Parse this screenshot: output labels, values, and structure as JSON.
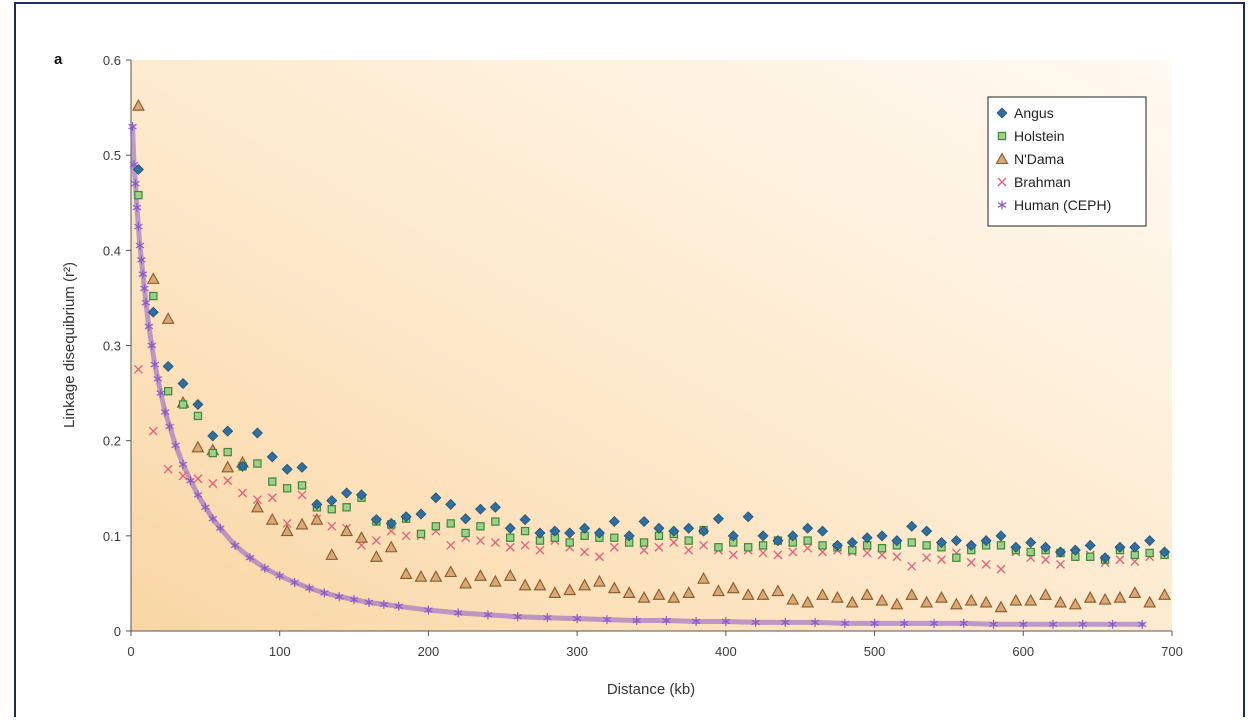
{
  "chart_data": {
    "type": "scatter",
    "panel_label": "a",
    "xlabel": "Distance (kb)",
    "ylabel": "Linkage disequibrium (r²)",
    "xlim": [
      0,
      700
    ],
    "ylim": [
      0,
      0.6
    ],
    "xticks": [
      0,
      100,
      200,
      300,
      400,
      500,
      600,
      700
    ],
    "yticks": [
      0,
      0.1,
      0.2,
      0.3,
      0.4,
      0.5,
      0.6
    ],
    "ytick_labels": [
      "0",
      "0.1",
      "0.2",
      "0.3",
      "0.4",
      "0.5",
      "0.6"
    ],
    "legend_position": "top-right",
    "background": "light orange gradient",
    "series": [
      {
        "name": "Angus",
        "marker": "diamond",
        "color": "#2f6fa0",
        "x": [
          5,
          15,
          25,
          35,
          45,
          55,
          65,
          75,
          85,
          95,
          105,
          115,
          125,
          135,
          145,
          155,
          165,
          175,
          185,
          195,
          205,
          215,
          225,
          235,
          245,
          255,
          265,
          275,
          285,
          295,
          305,
          315,
          325,
          335,
          345,
          355,
          365,
          375,
          385,
          395,
          405,
          415,
          425,
          435,
          445,
          455,
          465,
          475,
          485,
          495,
          505,
          515,
          525,
          535,
          545,
          555,
          565,
          575,
          585,
          595,
          605,
          615,
          625,
          635,
          645,
          655,
          665,
          675,
          685,
          695
        ],
        "y": [
          0.485,
          0.335,
          0.278,
          0.26,
          0.238,
          0.205,
          0.21,
          0.173,
          0.208,
          0.183,
          0.17,
          0.172,
          0.133,
          0.137,
          0.145,
          0.143,
          0.117,
          0.113,
          0.12,
          0.123,
          0.14,
          0.133,
          0.118,
          0.128,
          0.13,
          0.108,
          0.117,
          0.103,
          0.105,
          0.103,
          0.108,
          0.103,
          0.115,
          0.1,
          0.115,
          0.108,
          0.105,
          0.108,
          0.105,
          0.118,
          0.1,
          0.12,
          0.1,
          0.095,
          0.1,
          0.108,
          0.105,
          0.09,
          0.093,
          0.098,
          0.1,
          0.095,
          0.11,
          0.105,
          0.093,
          0.095,
          0.09,
          0.095,
          0.1,
          0.088,
          0.093,
          0.088,
          0.083,
          0.085,
          0.09,
          0.077,
          0.088,
          0.088,
          0.095,
          0.083
        ]
      },
      {
        "name": "Holstein",
        "marker": "square",
        "color": "#3c8a3c",
        "x": [
          5,
          15,
          25,
          35,
          45,
          55,
          65,
          75,
          85,
          95,
          105,
          115,
          125,
          135,
          145,
          155,
          165,
          175,
          185,
          195,
          205,
          215,
          225,
          235,
          245,
          255,
          265,
          275,
          285,
          295,
          305,
          315,
          325,
          335,
          345,
          355,
          365,
          375,
          385,
          395,
          405,
          415,
          425,
          435,
          445,
          455,
          465,
          475,
          485,
          495,
          505,
          515,
          525,
          535,
          545,
          555,
          565,
          575,
          585,
          595,
          605,
          615,
          625,
          635,
          645,
          655,
          665,
          675,
          685,
          695
        ],
        "y": [
          0.458,
          0.352,
          0.252,
          0.238,
          0.226,
          0.187,
          0.188,
          0.173,
          0.176,
          0.157,
          0.15,
          0.153,
          0.13,
          0.128,
          0.13,
          0.14,
          0.115,
          0.112,
          0.118,
          0.102,
          0.11,
          0.113,
          0.103,
          0.11,
          0.115,
          0.098,
          0.105,
          0.095,
          0.098,
          0.093,
          0.1,
          0.098,
          0.098,
          0.093,
          0.093,
          0.1,
          0.102,
          0.095,
          0.106,
          0.088,
          0.093,
          0.088,
          0.09,
          0.095,
          0.093,
          0.095,
          0.09,
          0.088,
          0.085,
          0.09,
          0.087,
          0.09,
          0.093,
          0.09,
          0.088,
          0.077,
          0.085,
          0.09,
          0.09,
          0.085,
          0.083,
          0.085,
          0.082,
          0.078,
          0.078,
          0.075,
          0.085,
          0.08,
          0.082,
          0.08
        ]
      },
      {
        "name": "N'Dama",
        "marker": "triangle",
        "color": "#8a5a2a",
        "x": [
          5,
          15,
          25,
          35,
          45,
          55,
          65,
          75,
          85,
          95,
          105,
          115,
          125,
          135,
          145,
          155,
          165,
          175,
          185,
          195,
          205,
          215,
          225,
          235,
          245,
          255,
          265,
          275,
          285,
          295,
          305,
          315,
          325,
          335,
          345,
          355,
          365,
          375,
          385,
          395,
          405,
          415,
          425,
          435,
          445,
          455,
          465,
          475,
          485,
          495,
          505,
          515,
          525,
          535,
          545,
          555,
          565,
          575,
          585,
          595,
          605,
          615,
          625,
          635,
          645,
          655,
          665,
          675,
          685,
          695
        ],
        "y": [
          0.552,
          0.37,
          0.328,
          0.24,
          0.193,
          0.19,
          0.172,
          0.177,
          0.13,
          0.117,
          0.105,
          0.112,
          0.117,
          0.08,
          0.105,
          0.098,
          0.078,
          0.088,
          0.06,
          0.057,
          0.057,
          0.062,
          0.05,
          0.058,
          0.052,
          0.058,
          0.048,
          0.048,
          0.04,
          0.043,
          0.048,
          0.052,
          0.045,
          0.04,
          0.035,
          0.038,
          0.035,
          0.04,
          0.055,
          0.042,
          0.045,
          0.038,
          0.038,
          0.042,
          0.033,
          0.03,
          0.038,
          0.035,
          0.03,
          0.038,
          0.032,
          0.028,
          0.038,
          0.03,
          0.035,
          0.028,
          0.032,
          0.03,
          0.025,
          0.032,
          0.032,
          0.038,
          0.03,
          0.028,
          0.035,
          0.033,
          0.035,
          0.04,
          0.03,
          0.038
        ]
      },
      {
        "name": "Brahman",
        "marker": "cross",
        "color": "#e0607a",
        "x": [
          5,
          15,
          25,
          35,
          45,
          55,
          65,
          75,
          85,
          95,
          105,
          115,
          125,
          135,
          145,
          155,
          165,
          175,
          185,
          195,
          205,
          215,
          225,
          235,
          245,
          255,
          265,
          275,
          285,
          295,
          305,
          315,
          325,
          335,
          345,
          355,
          365,
          375,
          385,
          395,
          405,
          415,
          425,
          435,
          445,
          455,
          465,
          475,
          485,
          495,
          505,
          515,
          525,
          535,
          545,
          555,
          565,
          575,
          585,
          595,
          605,
          615,
          625,
          635,
          645,
          655,
          665,
          675,
          685,
          695
        ],
        "y": [
          0.275,
          0.21,
          0.17,
          0.163,
          0.16,
          0.155,
          0.158,
          0.145,
          0.138,
          0.14,
          0.113,
          0.143,
          0.118,
          0.11,
          0.108,
          0.09,
          0.095,
          0.105,
          0.1,
          0.1,
          0.105,
          0.09,
          0.098,
          0.095,
          0.093,
          0.088,
          0.09,
          0.085,
          0.095,
          0.088,
          0.083,
          0.078,
          0.088,
          0.093,
          0.085,
          0.088,
          0.093,
          0.085,
          0.09,
          0.085,
          0.08,
          0.085,
          0.082,
          0.08,
          0.083,
          0.087,
          0.083,
          0.085,
          0.083,
          0.082,
          0.08,
          0.078,
          0.068,
          0.077,
          0.075,
          0.082,
          0.072,
          0.07,
          0.065,
          0.083,
          0.077,
          0.075,
          0.07,
          0.08,
          0.08,
          0.072,
          0.075,
          0.073,
          0.078,
          0.08
        ]
      },
      {
        "name": "Human (CEPH)",
        "marker": "star",
        "color": "#8a5ac8",
        "x": [
          1,
          2,
          3,
          4,
          5,
          6,
          7,
          8,
          9,
          10,
          12,
          14,
          16,
          18,
          20,
          23,
          26,
          30,
          35,
          40,
          45,
          50,
          55,
          60,
          70,
          80,
          90,
          100,
          110,
          120,
          130,
          140,
          150,
          160,
          170,
          180,
          200,
          220,
          240,
          260,
          280,
          300,
          320,
          340,
          360,
          380,
          400,
          420,
          440,
          460,
          480,
          500,
          520,
          540,
          560,
          580,
          600,
          620,
          640,
          660,
          680
        ],
        "y": [
          0.53,
          0.49,
          0.47,
          0.445,
          0.425,
          0.405,
          0.39,
          0.375,
          0.36,
          0.345,
          0.32,
          0.3,
          0.28,
          0.265,
          0.25,
          0.23,
          0.215,
          0.195,
          0.175,
          0.158,
          0.143,
          0.13,
          0.118,
          0.108,
          0.09,
          0.077,
          0.066,
          0.058,
          0.051,
          0.045,
          0.04,
          0.036,
          0.033,
          0.03,
          0.028,
          0.026,
          0.022,
          0.019,
          0.017,
          0.015,
          0.014,
          0.013,
          0.012,
          0.011,
          0.011,
          0.01,
          0.01,
          0.009,
          0.009,
          0.009,
          0.008,
          0.008,
          0.008,
          0.008,
          0.008,
          0.007,
          0.007,
          0.007,
          0.007,
          0.007,
          0.007
        ]
      }
    ]
  }
}
